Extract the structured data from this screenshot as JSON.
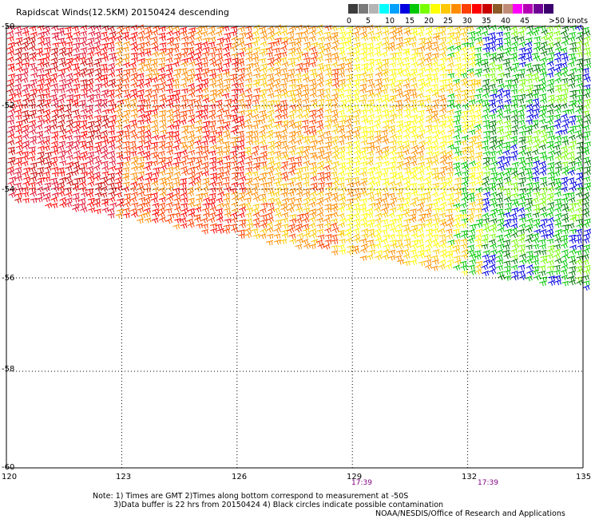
{
  "title": "Rapidscat Winds(12.5KM) 20150424 descending",
  "colorbar": {
    "colors": [
      "#3c3c3c",
      "#7a7a7a",
      "#b4b4b4",
      "#00ffff",
      "#00a0ff",
      "#0000e0",
      "#00c800",
      "#78ff00",
      "#ffff00",
      "#ffc800",
      "#ff8c00",
      "#ff4000",
      "#ff0000",
      "#c80000",
      "#8c5a28",
      "#c08c78",
      "#ff00ff",
      "#b400b4",
      "#6e0096",
      "#3c006e"
    ],
    "labels": [
      "0",
      "5",
      "10",
      "15",
      "20",
      "25",
      "30",
      "35",
      "40",
      "45",
      ">50 knots"
    ]
  },
  "map": {
    "lat_labels": [
      "-50",
      "-52",
      "-54",
      "-56",
      "-58",
      "-60"
    ],
    "lon_labels": [
      "120",
      "123",
      "126",
      "129",
      "132",
      "135"
    ],
    "lat_values": [
      -50,
      -52,
      -54,
      -56,
      -58,
      -60
    ],
    "lon_values": [
      120,
      123,
      126,
      129,
      132,
      135
    ],
    "times": [
      "17:39",
      "17:39"
    ]
  },
  "notes": {
    "line1": "Note: 1) Times are GMT 2)Times along bottom correspond to measurement at -50S",
    "line2": "3)Data buffer is 22 hrs from 20150424 4) Black circles indicate possible contamination",
    "line3": "NOAA/NESDIS/Office of Research and Applications"
  }
}
